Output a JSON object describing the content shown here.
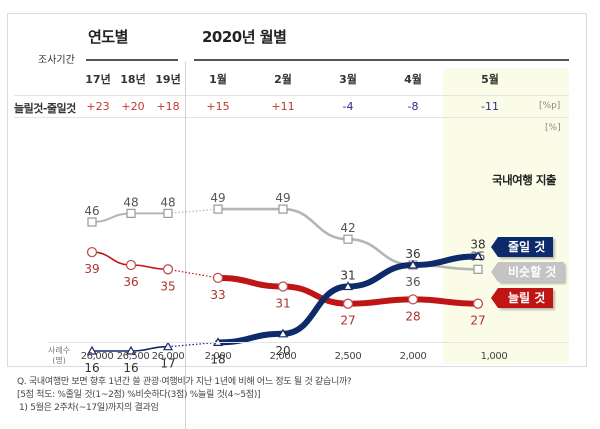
{
  "header": {
    "period_label": "조사기간",
    "annual_title": "연도별",
    "monthly_title": "2020년 월별",
    "diff_row_label": "늘릴것-줄일것",
    "diff_unit": "[%p]",
    "value_unit": "[%]"
  },
  "columns": [
    {
      "label": "17년",
      "diff": "+23",
      "diff_sign": "pos",
      "n": "26,000"
    },
    {
      "label": "18년",
      "diff": "+20",
      "diff_sign": "pos",
      "n": "26,500"
    },
    {
      "label": "19년",
      "diff": "+18",
      "diff_sign": "pos",
      "n": "26,000"
    },
    {
      "label": "1월",
      "diff": "+15",
      "diff_sign": "pos",
      "n": "2,000"
    },
    {
      "label": "2월",
      "diff": "+11",
      "diff_sign": "pos",
      "n": "2,000"
    },
    {
      "label": "3월",
      "diff": "-4",
      "diff_sign": "neg",
      "n": "2,500"
    },
    {
      "label": "4월",
      "diff": "-8",
      "diff_sign": "neg",
      "n": "2,000"
    },
    {
      "label": "5월",
      "diff": "-11",
      "diff_sign": "neg",
      "n": "1,000"
    }
  ],
  "sample_label": "사례수",
  "sample_unit": "(명)",
  "legend": {
    "title": "국내여행 지출",
    "items": [
      {
        "label": "줄일 것",
        "color": "#0d2a6b"
      },
      {
        "label": "비슷할 것",
        "color": "#c4c4c4"
      },
      {
        "label": "늘릴 것",
        "color": "#c01515"
      }
    ]
  },
  "footnotes": [
    "Q. 국내여행만 보면 향후 1년간 쓸 관광·여행비가 지난 1년에 비해 어느 정도 될 것 같습니까?",
    "[5점 척도: %줄일 것(1~2점) %비슷하다(3점) %늘릴 것(4~5점)]",
    "1) 5월은 2주차(~17일)까지의 결과임"
  ],
  "colors": {
    "positive": "#c0392b",
    "negative": "#2a2f8a",
    "highlight": "#fbfce8"
  },
  "chart_data": {
    "type": "line",
    "title": "국내여행 지출",
    "categories": [
      "17년",
      "18년",
      "19년",
      "1월",
      "2월",
      "3월",
      "4월",
      "5월"
    ],
    "groups": [
      {
        "name": "연도별",
        "categories": [
          "17년",
          "18년",
          "19년"
        ]
      },
      {
        "name": "2020년 월별",
        "categories": [
          "1월",
          "2월",
          "3월",
          "4월",
          "5월"
        ]
      }
    ],
    "series": [
      {
        "name": "비슷할 것",
        "color": "#b5b5b5",
        "marker": "square",
        "values": [
          46,
          48,
          48,
          49,
          49,
          42,
          36,
          35
        ]
      },
      {
        "name": "늘릴 것",
        "color": "#c01515",
        "marker": "circle",
        "values": [
          39,
          36,
          35,
          33,
          31,
          27,
          28,
          27
        ]
      },
      {
        "name": "줄일 것",
        "color": "#0d2a6b",
        "marker": "triangle",
        "values": [
          16,
          16,
          17,
          18,
          20,
          31,
          36,
          38
        ]
      }
    ],
    "ylabel": "[%]",
    "xlabel": "",
    "ylim": [
      10,
      55
    ],
    "grid": false,
    "legend_position": "right",
    "annotations": [
      "5월은 2주차(~17일)까지의 결과임"
    ]
  }
}
